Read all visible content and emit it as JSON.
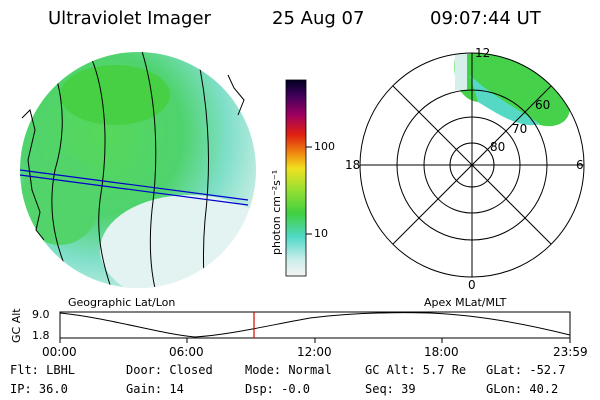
{
  "header": {
    "instrument": "Ultraviolet Imager",
    "date": "25 Aug 07",
    "time": "09:07:44 UT"
  },
  "geo_map": {
    "label": "Geographic Lat/Lon"
  },
  "colorbar": {
    "unit_label": "photon cm⁻²s⁻¹",
    "ticks": [
      "100",
      "10"
    ]
  },
  "polar_plot": {
    "label": "Apex MLat/MLT",
    "mlt_labels": {
      "top": "12",
      "left": "18",
      "right": "6",
      "bottom": "0"
    },
    "lat_labels": [
      "60",
      "70",
      "80"
    ]
  },
  "altitude_plot": {
    "ylabel": "GC Alt",
    "yticks": [
      "9.0",
      "1.8"
    ],
    "xticks": [
      "00:00",
      "06:00",
      "12:00",
      "18:00",
      "23:59"
    ],
    "current_time_marker": "09:07"
  },
  "info": {
    "flt": "Flt: LBHL",
    "ip": "IP: 36.0",
    "door": "Door: Closed",
    "gain": "Gain: 14",
    "mode": "Mode: Normal",
    "dsp": "Dsp:  -0.0",
    "gcalt": "GC Alt: 5.7 Re",
    "seq": "Seq: 39",
    "glat": "GLat: -52.7",
    "glon": "GLon:  40.2"
  },
  "colors": {
    "aurora_green": "#3fd24a",
    "aurora_cyan": "#4fdcc7",
    "pale": "#d8efec",
    "marker": "#e00000",
    "track": "#0000cc"
  }
}
